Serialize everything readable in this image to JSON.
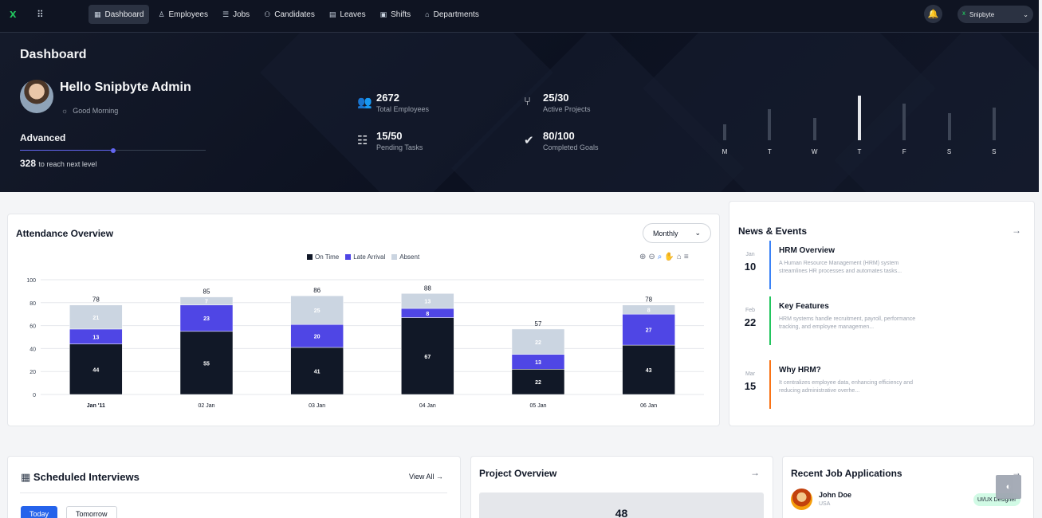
{
  "brand": {
    "logo": "X"
  },
  "nav": [
    {
      "label": "Dashboard",
      "icon": "dashboard-icon",
      "glyph": "▦"
    },
    {
      "label": "Employees",
      "icon": "user-icon",
      "glyph": "♙"
    },
    {
      "label": "Jobs",
      "icon": "list-icon",
      "glyph": "☰"
    },
    {
      "label": "Candidates",
      "icon": "candidates-icon",
      "glyph": "⚇"
    },
    {
      "label": "Leaves",
      "icon": "document-icon",
      "glyph": "▤"
    },
    {
      "label": "Shifts",
      "icon": "calendar-icon",
      "glyph": "▣"
    },
    {
      "label": "Departments",
      "icon": "building-icon",
      "glyph": "⌂"
    }
  ],
  "user": {
    "name": "Snipbyte",
    "logo": "X"
  },
  "hero": {
    "title": "Dashboard",
    "greeting": "Hello Snipbyte Admin",
    "time_of_day": "Good Morning",
    "level": "Advanced",
    "level_progress": 0.5,
    "points": "328",
    "points_label": "to reach next level",
    "stats": [
      {
        "value": "2672",
        "label": "Total Employees",
        "icon": "users-icon",
        "glyph": "👥"
      },
      {
        "value": "25/30",
        "label": "Active Projects",
        "icon": "project-icon",
        "glyph": "⑂"
      },
      {
        "value": "15/50",
        "label": "Pending Tasks",
        "icon": "tasks-icon",
        "glyph": "☷"
      },
      {
        "value": "80/100",
        "label": "Completed Goals",
        "icon": "check-circle-icon",
        "glyph": "✔"
      }
    ],
    "week": [
      {
        "day": "M",
        "value": 0.35
      },
      {
        "day": "T",
        "value": 0.7
      },
      {
        "day": "W",
        "value": 0.5
      },
      {
        "day": "T",
        "value": 1.0,
        "highlight": true
      },
      {
        "day": "F",
        "value": 0.83
      },
      {
        "day": "S",
        "value": 0.6
      },
      {
        "day": "S",
        "value": 0.74
      }
    ]
  },
  "attendance": {
    "title": "Attendance Overview",
    "period": "Monthly"
  },
  "chart_data": {
    "type": "bar",
    "stacked": true,
    "categories": [
      "Jan '11",
      "02 Jan",
      "03 Jan",
      "04 Jan",
      "05 Jan",
      "06 Jan"
    ],
    "series": [
      {
        "name": "On Time",
        "color": "#111827",
        "values": [
          44,
          55,
          41,
          67,
          22,
          43
        ]
      },
      {
        "name": "Late Arrival",
        "color": "#4f46e5",
        "values": [
          13,
          23,
          20,
          8,
          13,
          27
        ]
      },
      {
        "name": "Absent",
        "color": "#cbd5e1",
        "values": [
          21,
          7,
          25,
          13,
          22,
          8
        ]
      }
    ],
    "totals": [
      78,
      85,
      86,
      88,
      57,
      78
    ],
    "ylim": [
      0,
      100
    ],
    "yticks": [
      0,
      20,
      40,
      60,
      80,
      100
    ],
    "legend": "top"
  },
  "news": {
    "title": "News & Events",
    "items": [
      {
        "month": "Jan",
        "day": "10",
        "title": "HRM Overview",
        "desc": "A Human Resource Management (HRM) system streamlines HR processes and automates tasks...",
        "color": "#3b82f6"
      },
      {
        "month": "Feb",
        "day": "22",
        "title": "Key Features",
        "desc": "HRM systems handle recruitment, payroll, performance tracking, and employee managemen...",
        "color": "#22c55e"
      },
      {
        "month": "Mar",
        "day": "15",
        "title": "Why HRM?",
        "desc": "It centralizes employee data, enhancing efficiency and reducing administrative overhe...",
        "color": "#f97316"
      }
    ]
  },
  "interviews": {
    "title": "Scheduled Interviews",
    "view_all": "View All",
    "tabs": [
      "Today",
      "Tomorrow"
    ]
  },
  "projects": {
    "title": "Project Overview",
    "value": "48"
  },
  "jobs": {
    "title": "Recent Job Applications",
    "applicant": {
      "name": "John Doe",
      "location": "USA",
      "role": "UI/UX Designer"
    }
  }
}
